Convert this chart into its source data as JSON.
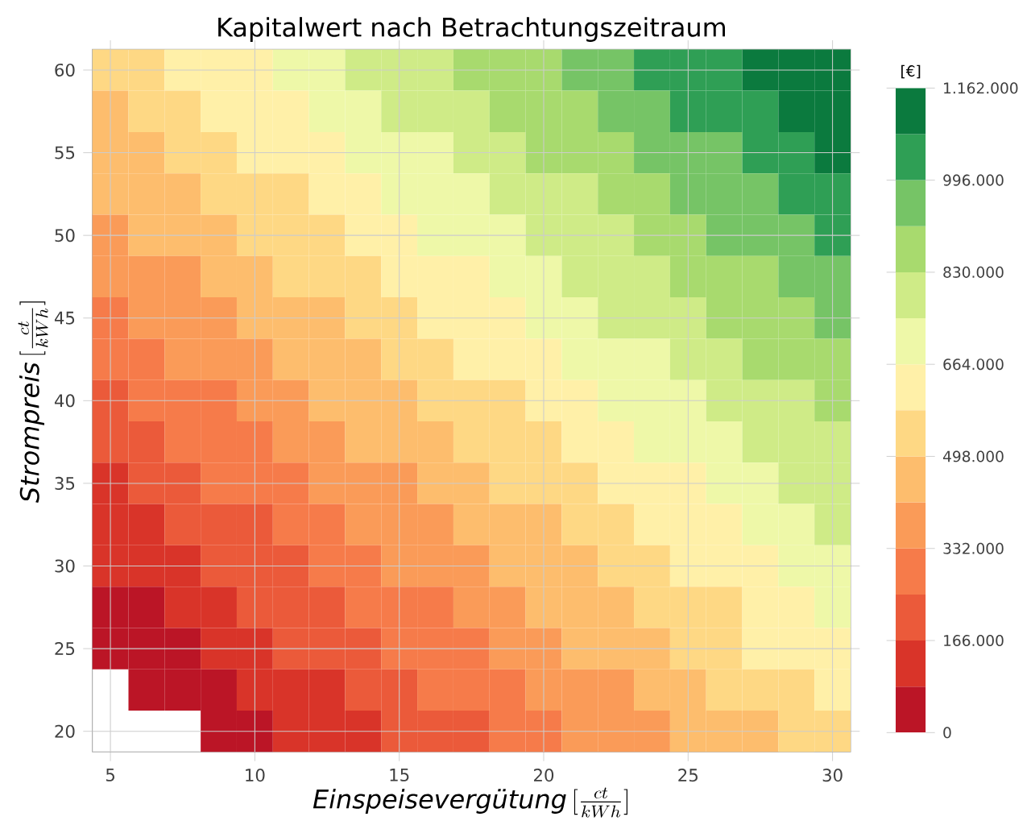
{
  "chart_data": {
    "type": "heatmap",
    "title": "Kapitalwert nach Betrachtungszeitraum",
    "xlabel": "\\textit{Einspeisevergütung}\\,[\\frac{ct}{kWh}]",
    "ylabel": "\\textit{Strompreis}\\,[\\frac{ct}{kWh}]",
    "clabel": "[€]",
    "categories": [
      "5",
      null,
      null,
      null,
      "10",
      null,
      null,
      null,
      "15",
      null,
      null,
      null,
      "20",
      null,
      null,
      null,
      "25",
      null,
      null,
      null,
      "30"
    ],
    "y_categories": [
      "60",
      null,
      "55",
      null,
      "50",
      null,
      "45",
      null,
      "40",
      null,
      "35",
      null,
      "30",
      null,
      "25",
      null,
      "20"
    ],
    "cells": [
      [
        539500,
        539500,
        622500,
        622500,
        622500,
        705500,
        705500,
        788500,
        788500,
        788500,
        871500,
        871500,
        871500,
        954500,
        954500,
        1037500,
        1037500,
        1037500,
        1120500,
        1120500,
        1120500
      ],
      [
        456500,
        539500,
        539500,
        622500,
        622500,
        622500,
        705500,
        705500,
        788500,
        788500,
        788500,
        871500,
        871500,
        871500,
        954500,
        954500,
        1037500,
        1037500,
        1037500,
        1120500,
        1120500
      ],
      [
        456500,
        456500,
        539500,
        539500,
        622500,
        622500,
        622500,
        705500,
        705500,
        705500,
        788500,
        788500,
        871500,
        871500,
        871500,
        954500,
        954500,
        954500,
        1037500,
        1037500,
        1120500
      ],
      [
        456500,
        456500,
        456500,
        539500,
        539500,
        539500,
        622500,
        622500,
        705500,
        705500,
        705500,
        788500,
        788500,
        788500,
        871500,
        871500,
        954500,
        954500,
        954500,
        1037500,
        1037500
      ],
      [
        373500,
        456500,
        456500,
        456500,
        539500,
        539500,
        539500,
        622500,
        622500,
        705500,
        705500,
        705500,
        788500,
        788500,
        788500,
        871500,
        871500,
        954500,
        954500,
        954500,
        1037500
      ],
      [
        373500,
        373500,
        373500,
        456500,
        456500,
        539500,
        539500,
        539500,
        622500,
        622500,
        622500,
        705500,
        705500,
        788500,
        788500,
        788500,
        871500,
        871500,
        871500,
        954500,
        954500
      ],
      [
        290500,
        373500,
        373500,
        373500,
        456500,
        456500,
        456500,
        539500,
        539500,
        622500,
        622500,
        622500,
        705500,
        705500,
        788500,
        788500,
        788500,
        871500,
        871500,
        871500,
        954500
      ],
      [
        290500,
        290500,
        373500,
        373500,
        373500,
        456500,
        456500,
        456500,
        539500,
        539500,
        622500,
        622500,
        622500,
        705500,
        705500,
        705500,
        788500,
        788500,
        871500,
        871500,
        871500
      ],
      [
        207500,
        290500,
        290500,
        290500,
        373500,
        373500,
        456500,
        456500,
        456500,
        539500,
        539500,
        539500,
        622500,
        622500,
        705500,
        705500,
        705500,
        788500,
        788500,
        788500,
        871500
      ],
      [
        207500,
        207500,
        290500,
        290500,
        290500,
        373500,
        373500,
        456500,
        456500,
        456500,
        539500,
        539500,
        539500,
        622500,
        622500,
        705500,
        705500,
        705500,
        788500,
        788500,
        788500
      ],
      [
        124500,
        207500,
        207500,
        290500,
        290500,
        290500,
        373500,
        373500,
        373500,
        456500,
        456500,
        539500,
        539500,
        539500,
        622500,
        622500,
        622500,
        705500,
        705500,
        788500,
        788500
      ],
      [
        124500,
        124500,
        207500,
        207500,
        207500,
        290500,
        290500,
        373500,
        373500,
        373500,
        456500,
        456500,
        456500,
        539500,
        539500,
        622500,
        622500,
        622500,
        705500,
        705500,
        788500
      ],
      [
        124500,
        124500,
        124500,
        207500,
        207500,
        207500,
        290500,
        290500,
        373500,
        373500,
        373500,
        456500,
        456500,
        456500,
        539500,
        539500,
        622500,
        622500,
        622500,
        705500,
        705500
      ],
      [
        41500,
        41500,
        124500,
        124500,
        207500,
        207500,
        207500,
        290500,
        290500,
        290500,
        373500,
        373500,
        456500,
        456500,
        456500,
        539500,
        539500,
        539500,
        622500,
        622500,
        705500
      ],
      [
        41500,
        41500,
        41500,
        124500,
        124500,
        207500,
        207500,
        207500,
        290500,
        290500,
        290500,
        373500,
        373500,
        456500,
        456500,
        456500,
        539500,
        539500,
        622500,
        622500,
        622500
      ],
      [
        null,
        41500,
        41500,
        41500,
        124500,
        124500,
        124500,
        207500,
        207500,
        290500,
        290500,
        290500,
        373500,
        373500,
        373500,
        456500,
        456500,
        539500,
        539500,
        539500,
        622500
      ],
      [
        null,
        null,
        null,
        41500,
        41500,
        124500,
        124500,
        124500,
        207500,
        207500,
        207500,
        290500,
        290500,
        373500,
        373500,
        373500,
        456500,
        456500,
        456500,
        539500,
        539500
      ]
    ],
    "colors": [
      "#bb1526",
      "#d93429",
      "#eb5a3a",
      "#f67b4a",
      "#fa9b58",
      "#fdbd6d",
      "#fed884",
      "#fff0a8",
      "#eef8a8",
      "#cfeb87",
      "#a8da6e",
      "#76c466",
      "#2f9f55",
      "#0b7a3e"
    ],
    "clim": [
      0,
      1162000
    ],
    "cticks": [
      {
        "value": 0,
        "label": "0"
      },
      {
        "value": 166000,
        "label": "166.000"
      },
      {
        "value": 332000,
        "label": "332.000"
      },
      {
        "value": 498000,
        "label": "498.000"
      },
      {
        "value": 664000,
        "label": "664.000"
      },
      {
        "value": 830000,
        "label": "830.000"
      },
      {
        "value": 996000,
        "label": "996.000"
      },
      {
        "value": 1162000,
        "label": "1.162.000"
      }
    ],
    "grid": true
  }
}
